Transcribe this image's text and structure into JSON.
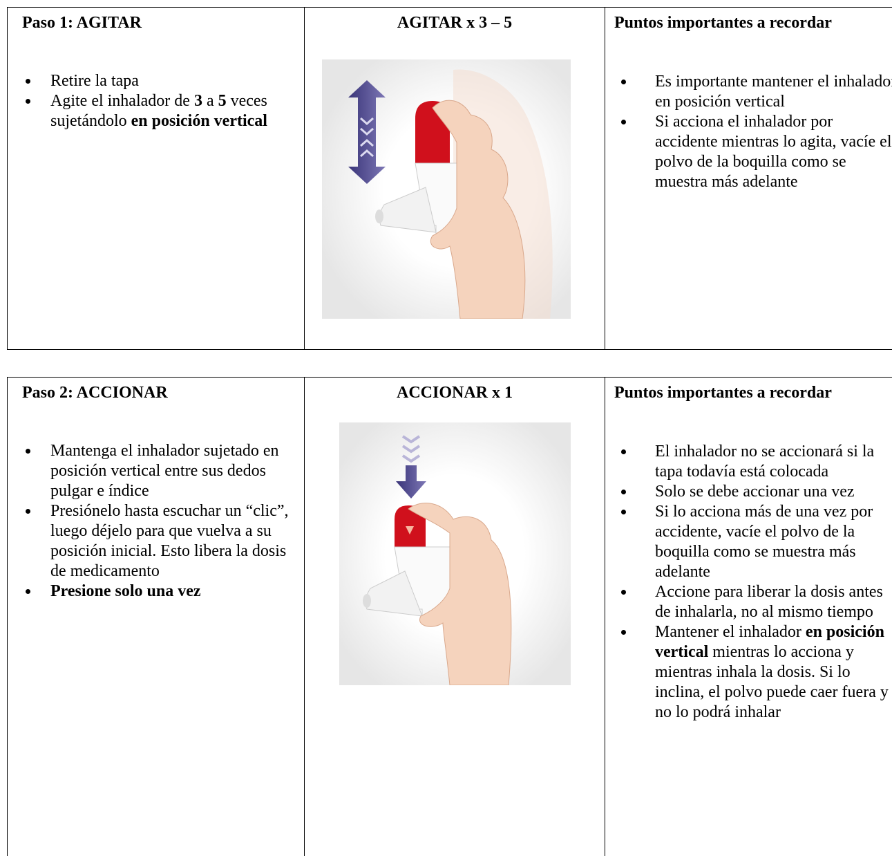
{
  "sections": [
    {
      "step_title": "Paso 1: AGITAR",
      "image_title": "AGITAR x 3 – 5",
      "notes_title": "Puntos importantes a recordar",
      "steps": [
        [
          {
            "text": "Retire la tapa"
          }
        ],
        [
          {
            "text": "Agite el inhalador de "
          },
          {
            "text": "3",
            "bold": true
          },
          {
            "text": " a "
          },
          {
            "text": "5",
            "bold": true
          },
          {
            "text": " veces sujetándolo "
          },
          {
            "text": "en posición vertical",
            "bold": true
          }
        ]
      ],
      "notes": [
        [
          {
            "text": "Es importante mantener el inhalador en posición vertical"
          }
        ],
        [
          {
            "text": "Si acciona el inhalador por accidente mientras lo agita, vacíe el polvo de la boquilla como se muestra más adelante"
          }
        ]
      ]
    },
    {
      "step_title": "Paso 2: ACCIONAR",
      "image_title": "ACCIONAR x 1",
      "notes_title": "Puntos importantes a recordar",
      "steps": [
        [
          {
            "text": "Mantenga el inhalador sujetado en posición vertical entre sus dedos pulgar e índice"
          }
        ],
        [
          {
            "text": "Presiónelo hasta escuchar un “clic”, luego déjelo para que vuelva a su posición inicial. Esto libera la dosis de medicamento"
          }
        ],
        [
          {
            "text": "Presione solo una vez",
            "bold": true
          }
        ]
      ],
      "notes": [
        [
          {
            "text": "El inhalador no se accionará si la tapa todavía está colocada"
          }
        ],
        [
          {
            "text": "Solo se debe accionar una vez"
          }
        ],
        [
          {
            "text": "Si lo acciona más de una vez por accidente, vacíe el polvo de la boquilla como se muestra más adelante"
          }
        ],
        [
          {
            "text": "Accione para liberar la dosis antes de inhalarla, no al mismo tiempo"
          }
        ],
        [
          {
            "text": "Mantener el inhalador "
          },
          {
            "text": "en posición vertical",
            "bold": true
          },
          {
            "text": " mientras lo acciona y mientras inhala la dosis. Si lo inclina, el polvo puede caer fuera y no lo podrá inhalar"
          }
        ]
      ]
    }
  ]
}
